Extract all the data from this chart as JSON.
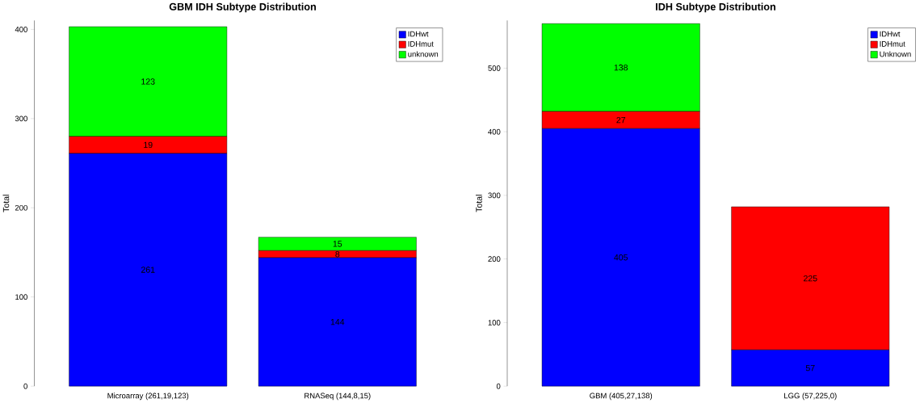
{
  "chart_data": [
    {
      "type": "bar",
      "stacked": true,
      "title": "GBM IDH Subtype Distribution",
      "ylabel": "Total",
      "categories": [
        "Microarray (261,19,123)",
        "RNASeq (144,8,15)"
      ],
      "series": [
        {
          "name": "IDHwt",
          "color": "#0000ff",
          "values": [
            261,
            144
          ]
        },
        {
          "name": "IDHmut",
          "color": "#ff0000",
          "values": [
            19,
            8
          ]
        },
        {
          "name": "unknown",
          "color": "#00ff00",
          "values": [
            123,
            15
          ]
        }
      ],
      "ylim": [
        0,
        410
      ],
      "yticks": [
        0,
        100,
        200,
        300,
        400
      ],
      "data_labels": true,
      "legend": "top right"
    },
    {
      "type": "bar",
      "stacked": true,
      "title": "IDH Subtype Distribution",
      "ylabel": "Total",
      "categories": [
        "GBM (405,27,138)",
        "LGG (57,225,0)"
      ],
      "series": [
        {
          "name": "IDHwt",
          "color": "#0000ff",
          "values": [
            405,
            57
          ],
          "value_labels": [
            "405",
            "57"
          ]
        },
        {
          "name": "IDHmut",
          "color": "#ff0000",
          "values": [
            27,
            225
          ],
          "value_labels": [
            "27",
            "225"
          ]
        },
        {
          "name": "Unknown",
          "color": "#00ff00",
          "values": [
            138,
            0
          ],
          "value_labels": [
            "138",
            null
          ]
        }
      ],
      "ylim": [
        0,
        575
      ],
      "yticks": [
        0,
        100,
        200,
        300,
        400,
        500
      ],
      "legend": "top right"
    }
  ]
}
